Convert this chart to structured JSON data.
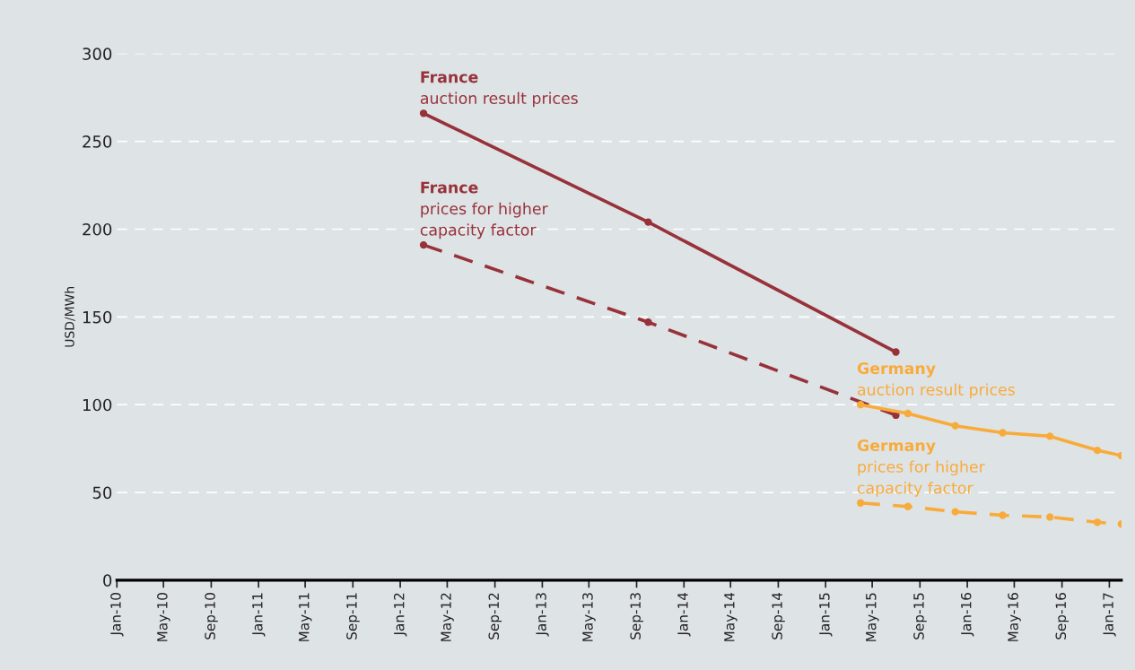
{
  "chart_data": {
    "type": "line",
    "ylabel": "USD/MWh",
    "ylim": [
      0,
      300
    ],
    "yticks": [
      0,
      50,
      100,
      150,
      200,
      250,
      300
    ],
    "xlim": [
      "2010-01",
      "2017-02"
    ],
    "xticks": [
      {
        "value": "2010-01",
        "label": "Jan-10"
      },
      {
        "value": "2010-05",
        "label": "May-10"
      },
      {
        "value": "2010-09",
        "label": "Sep-10"
      },
      {
        "value": "2011-01",
        "label": "Jan-11"
      },
      {
        "value": "2011-05",
        "label": "May-11"
      },
      {
        "value": "2011-09",
        "label": "Sep-11"
      },
      {
        "value": "2012-01",
        "label": "Jan-12"
      },
      {
        "value": "2012-05",
        "label": "May-12"
      },
      {
        "value": "2012-09",
        "label": "Sep-12"
      },
      {
        "value": "2013-01",
        "label": "Jan-13"
      },
      {
        "value": "2013-05",
        "label": "May-13"
      },
      {
        "value": "2013-09",
        "label": "Sep-13"
      },
      {
        "value": "2014-01",
        "label": "Jan-14"
      },
      {
        "value": "2014-05",
        "label": "May-14"
      },
      {
        "value": "2014-09",
        "label": "Sep-14"
      },
      {
        "value": "2015-01",
        "label": "Jan-15"
      },
      {
        "value": "2015-05",
        "label": "May-15"
      },
      {
        "value": "2015-09",
        "label": "Sep-15"
      },
      {
        "value": "2016-01",
        "label": "Jan-16"
      },
      {
        "value": "2016-05",
        "label": "May-16"
      },
      {
        "value": "2016-09",
        "label": "Sep-16"
      },
      {
        "value": "2017-01",
        "label": "Jan-17"
      }
    ],
    "grid": "y",
    "marker": "circle",
    "legend": false,
    "series": [
      {
        "name": "France\nauction result prices",
        "color": "#97323a",
        "line_style": "solid",
        "x": [
          "2012-03",
          "2013-10",
          "2015-07"
        ],
        "values": [
          266,
          204,
          130
        ]
      },
      {
        "name": "France\nprices for higher\ncapacity factor",
        "color": "#97323a",
        "line_style": "dashed",
        "x": [
          "2012-03",
          "2013-10",
          "2015-07"
        ],
        "values": [
          191,
          147,
          94
        ]
      },
      {
        "name": "Germany\nauction result prices",
        "color": "#f9ab3a",
        "line_style": "solid",
        "x": [
          "2015-04",
          "2015-08",
          "2015-12",
          "2016-04",
          "2016-08",
          "2016-12",
          "2017-02"
        ],
        "values": [
          100,
          95,
          88,
          84,
          82,
          74,
          71
        ]
      },
      {
        "name": "Germany\nprices for higher\ncapacity factor",
        "color": "#f9ab3a",
        "line_style": "dashed",
        "x": [
          "2015-04",
          "2015-08",
          "2015-12",
          "2016-04",
          "2016-08",
          "2016-12",
          "2017-02"
        ],
        "values": [
          44,
          42,
          39,
          37,
          36,
          33,
          32
        ]
      }
    ]
  }
}
